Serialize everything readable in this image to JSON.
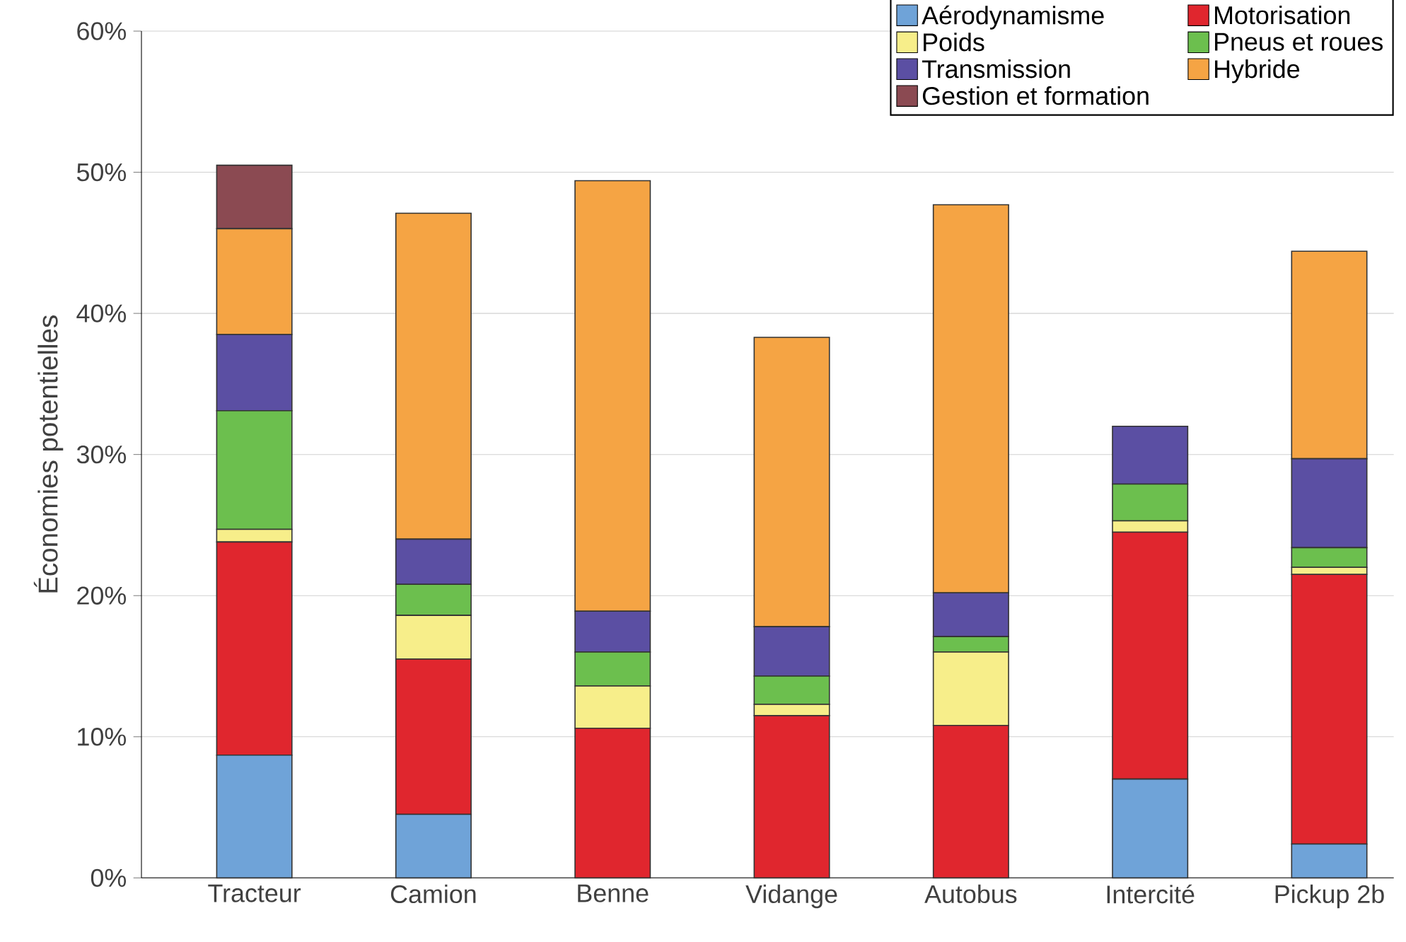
{
  "chart_data": {
    "type": "bar",
    "stacked": true,
    "ylabel": "Économies potentielles",
    "categories": [
      "Tracteur",
      "Camion",
      "Benne",
      "Vidange",
      "Autobus",
      "Intercité",
      "Pickup 2b"
    ],
    "series": [
      {
        "name": "Aérodynamisme",
        "color": "#6fa3d8",
        "values": [
          8.7,
          4.5,
          0,
          0,
          0,
          7.0,
          2.4
        ]
      },
      {
        "name": "Motorisation",
        "color": "#e0262e",
        "values": [
          15.1,
          11.0,
          10.6,
          11.5,
          10.8,
          17.5,
          19.1
        ]
      },
      {
        "name": "Poids",
        "color": "#f7ee8a",
        "values": [
          0.9,
          3.1,
          3.0,
          0.8,
          5.2,
          0.8,
          0.5
        ]
      },
      {
        "name": "Pneus et roues",
        "color": "#6cbf4e",
        "values": [
          8.4,
          2.2,
          2.4,
          2.0,
          1.1,
          2.6,
          1.4
        ]
      },
      {
        "name": "Transmission",
        "color": "#5b4fa3",
        "values": [
          5.4,
          3.2,
          2.9,
          3.5,
          3.1,
          4.1,
          6.3
        ]
      },
      {
        "name": "Hybride",
        "color": "#f5a444",
        "values": [
          7.5,
          23.1,
          30.5,
          20.5,
          27.5,
          0,
          14.7
        ]
      },
      {
        "name": "Gestion et formation",
        "color": "#8b4a52",
        "values": [
          4.5,
          0,
          0,
          0,
          0,
          0,
          0
        ]
      }
    ],
    "ylim": [
      0,
      60
    ],
    "yticks": [
      {
        "value": 0,
        "label": "0%"
      },
      {
        "value": 10,
        "label": "10%"
      },
      {
        "value": 20,
        "label": "20%"
      },
      {
        "value": 30,
        "label": "30%"
      },
      {
        "value": 40,
        "label": "40%"
      },
      {
        "value": 50,
        "label": "50%"
      },
      {
        "value": 60,
        "label": "60%"
      }
    ],
    "grid": "y",
    "legend": "top right"
  }
}
